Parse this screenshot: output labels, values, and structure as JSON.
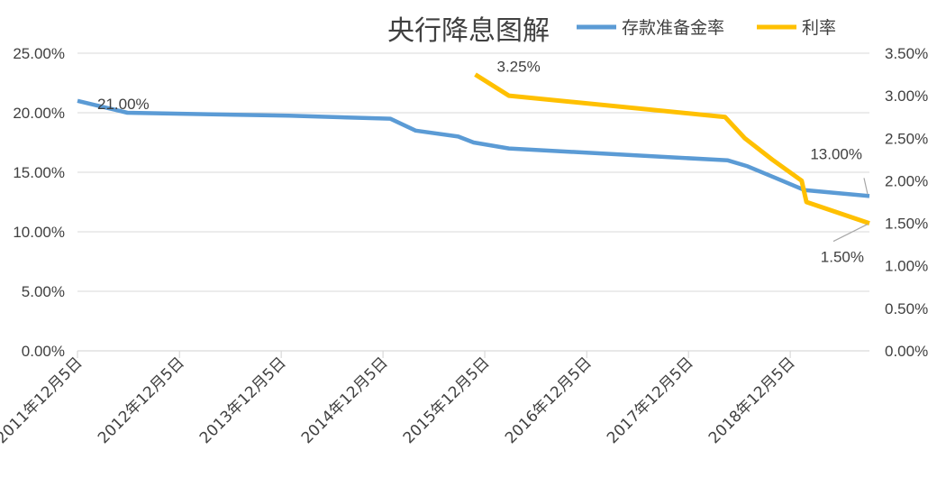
{
  "chart_data": {
    "type": "line",
    "title": "央行降息图解",
    "legend_position": "top-right",
    "grid": true,
    "x_axis": {
      "type": "date",
      "range": [
        "2011-12-05",
        "2019-09-15"
      ],
      "tick_dates": [
        "2011-12-05",
        "2012-12-05",
        "2013-12-05",
        "2014-12-05",
        "2015-12-05",
        "2016-12-05",
        "2017-12-05",
        "2018-12-05"
      ],
      "tick_labels": [
        "2011年12月5日",
        "2012年12月5日",
        "2013年12月5日",
        "2014年12月5日",
        "2015年12月5日",
        "2016年12月5日",
        "2017年12月5日",
        "2018年12月5日"
      ]
    },
    "y_left": {
      "range": [
        0,
        25
      ],
      "ticks": [
        0,
        5,
        10,
        15,
        20,
        25
      ],
      "tick_labels": [
        "0.00%",
        "5.00%",
        "10.00%",
        "15.00%",
        "20.00%",
        "25.00%"
      ]
    },
    "y_right": {
      "range": [
        0,
        3.5
      ],
      "ticks": [
        0,
        0.5,
        1.0,
        1.5,
        2.0,
        2.5,
        3.0,
        3.5
      ],
      "tick_labels": [
        "0.00%",
        "0.50%",
        "1.00%",
        "1.50%",
        "2.00%",
        "2.50%",
        "3.00%",
        "3.50%"
      ]
    },
    "series": [
      {
        "name": "存款准备金率",
        "axis": "left",
        "color": "#5b9bd5",
        "points": [
          {
            "x": "2011-12-05",
            "y": 21.0
          },
          {
            "x": "2012-06-01",
            "y": 20.0
          },
          {
            "x": "2013-01-01",
            "y": 19.9
          },
          {
            "x": "2014-01-01",
            "y": 19.75
          },
          {
            "x": "2014-12-31",
            "y": 19.5
          },
          {
            "x": "2015-04-01",
            "y": 18.5
          },
          {
            "x": "2015-09-01",
            "y": 18.0
          },
          {
            "x": "2015-10-26",
            "y": 17.5
          },
          {
            "x": "2016-03-01",
            "y": 17.0
          },
          {
            "x": "2018-04-25",
            "y": 16.0
          },
          {
            "x": "2018-07-05",
            "y": 15.5
          },
          {
            "x": "2018-10-15",
            "y": 14.5
          },
          {
            "x": "2019-01-25",
            "y": 13.5
          },
          {
            "x": "2019-09-15",
            "y": 13.0
          }
        ]
      },
      {
        "name": "利率",
        "axis": "right",
        "color": "#ffc000",
        "points": [
          {
            "x": "2015-11-01",
            "y": 3.25
          },
          {
            "x": "2016-03-01",
            "y": 3.0
          },
          {
            "x": "2018-04-15",
            "y": 2.75
          },
          {
            "x": "2018-06-25",
            "y": 2.5
          },
          {
            "x": "2018-10-01",
            "y": 2.25
          },
          {
            "x": "2019-01-15",
            "y": 2.0
          },
          {
            "x": "2019-02-01",
            "y": 1.75
          },
          {
            "x": "2019-09-15",
            "y": 1.5
          }
        ]
      }
    ],
    "annotations": [
      {
        "series": 0,
        "point": 0,
        "text": "21.00%"
      },
      {
        "series": 1,
        "point": 0,
        "text": "3.25%"
      },
      {
        "series": 0,
        "point": 13,
        "text": "13.00%"
      },
      {
        "series": 1,
        "point": 7,
        "text": "1.50%"
      }
    ]
  }
}
